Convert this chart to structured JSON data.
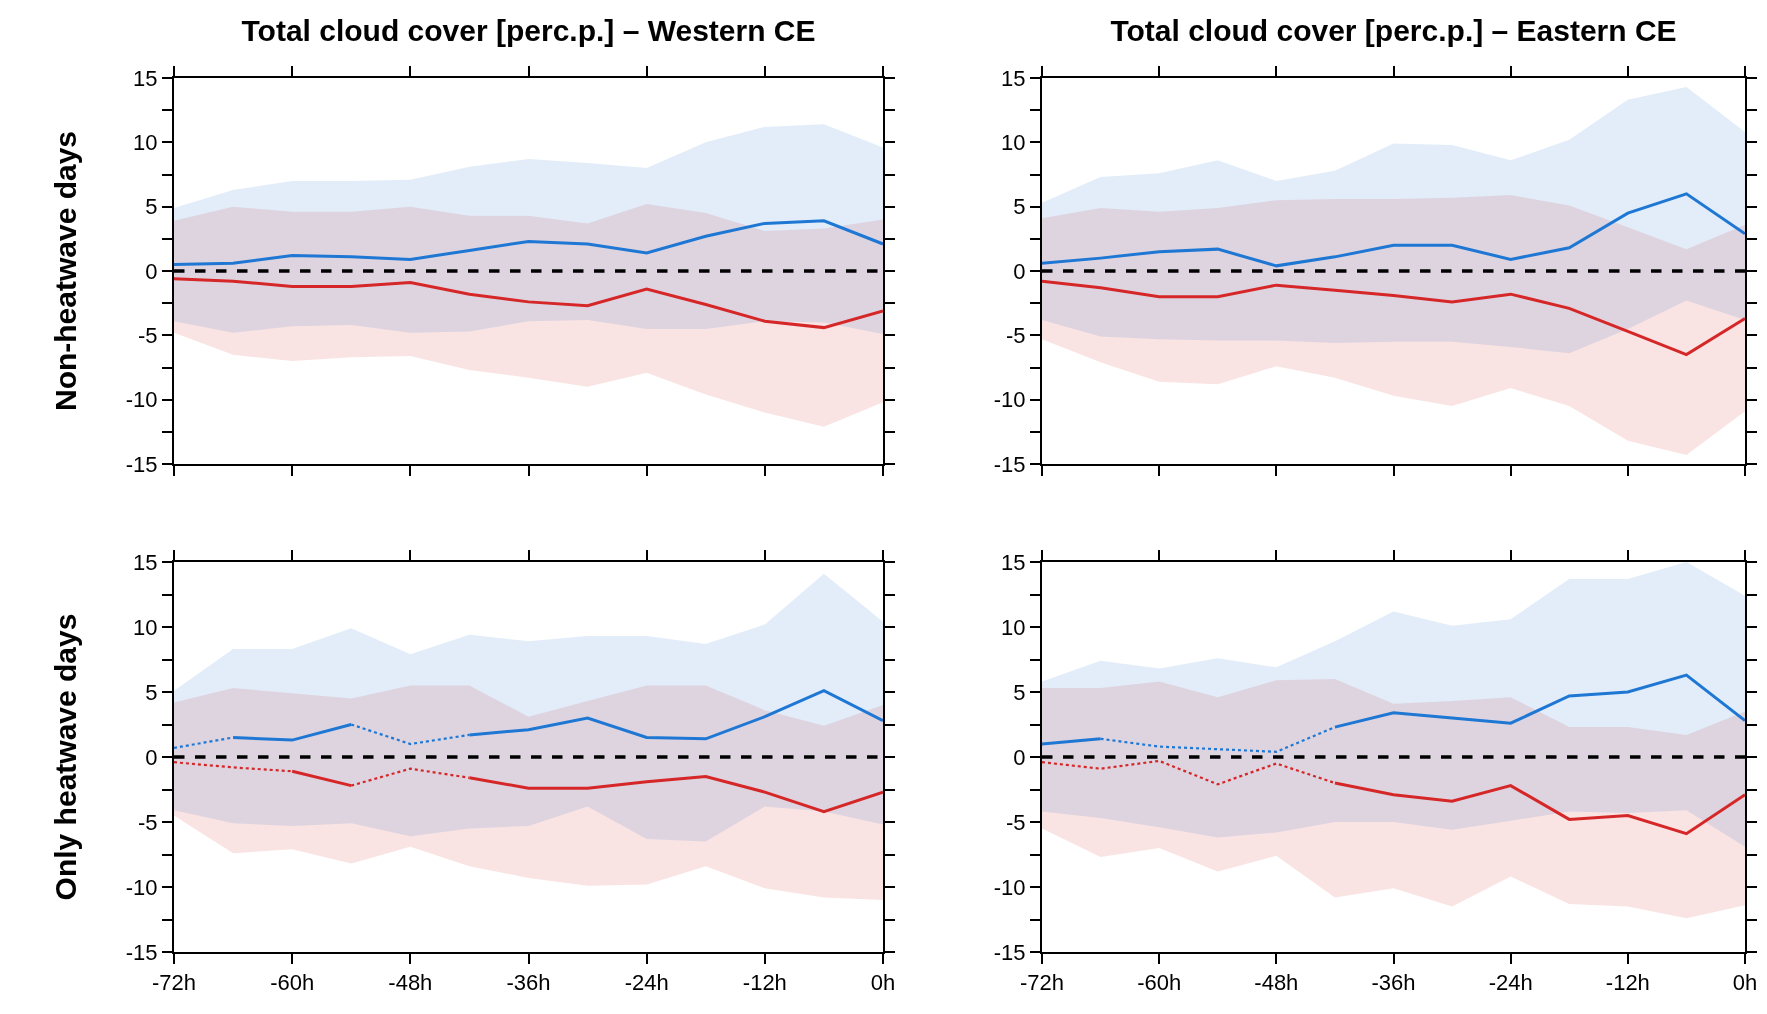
{
  "chart_data": [
    {
      "type": "line",
      "title": "Total cloud cover [perc.p.] – Western CE",
      "ylabel": "Non-heatwave days",
      "tick_labels": "y",
      "x": [
        -72,
        -66,
        -60,
        -54,
        -48,
        -42,
        -36,
        -30,
        -24,
        -18,
        -12,
        -6,
        0
      ],
      "xlim": [
        -72,
        0
      ],
      "xticks": [
        {
          "value": -72,
          "label": null
        },
        {
          "value": -60,
          "label": null
        },
        {
          "value": -48,
          "label": null
        },
        {
          "value": -36,
          "label": null
        },
        {
          "value": -24,
          "label": null
        },
        {
          "value": -12,
          "label": null
        },
        {
          "value": 0,
          "label": null
        }
      ],
      "ylim": [
        -15,
        15
      ],
      "yticks": [
        -15,
        {
          "value": -12.5,
          "label": null
        },
        -10,
        {
          "value": -7.5,
          "label": null
        },
        -5,
        {
          "value": -2.5,
          "label": null
        },
        0,
        {
          "value": 2.5,
          "label": null
        },
        5,
        {
          "value": 7.5,
          "label": null
        },
        10,
        {
          "value": 12.5,
          "label": null
        },
        15
      ],
      "grid": false,
      "marker": "none",
      "ref_lines": [
        {
          "axis": "y",
          "value": 0,
          "color": "#000000",
          "line_style": "dashed"
        }
      ],
      "series": [
        {
          "color": "#d62728",
          "line_style": "solid",
          "values": [
            -0.6,
            -0.8,
            -1.2,
            -1.2,
            -0.9,
            -1.8,
            -2.4,
            -2.7,
            -1.4,
            -2.6,
            -3.9,
            -4.4,
            -3.1
          ],
          "lower": [
            -4.8,
            -6.5,
            -7.0,
            -6.7,
            -6.6,
            -7.7,
            -8.3,
            -9.0,
            -7.9,
            -9.6,
            -11.0,
            -12.1,
            -10.2
          ],
          "upper": [
            3.9,
            5.0,
            4.6,
            4.6,
            5.0,
            4.3,
            4.3,
            3.7,
            5.2,
            4.5,
            3.1,
            3.3,
            4.0
          ]
        },
        {
          "color": "#1f77d4",
          "line_style": "solid",
          "values": [
            0.5,
            0.6,
            1.2,
            1.1,
            0.9,
            1.6,
            2.3,
            2.1,
            1.4,
            2.7,
            3.7,
            3.9,
            2.1
          ],
          "lower": [
            -3.9,
            -4.8,
            -4.3,
            -4.2,
            -4.8,
            -4.7,
            -3.9,
            -3.8,
            -4.5,
            -4.5,
            -3.9,
            -4.0,
            -4.9
          ],
          "upper": [
            4.9,
            6.3,
            7.0,
            7.0,
            7.1,
            8.1,
            8.7,
            8.4,
            8.0,
            10.0,
            11.2,
            11.4,
            9.6
          ]
        }
      ]
    },
    {
      "type": "line",
      "title": "Total cloud cover [perc.p.] – Eastern CE",
      "tick_labels": "y",
      "x": [
        -72,
        -66,
        -60,
        -54,
        -48,
        -42,
        -36,
        -30,
        -24,
        -18,
        -12,
        -6,
        0
      ],
      "xlim": [
        -72,
        0
      ],
      "xticks": [
        {
          "value": -72,
          "label": null
        },
        {
          "value": -60,
          "label": null
        },
        {
          "value": -48,
          "label": null
        },
        {
          "value": -36,
          "label": null
        },
        {
          "value": -24,
          "label": null
        },
        {
          "value": -12,
          "label": null
        },
        {
          "value": 0,
          "label": null
        }
      ],
      "ylim": [
        -15,
        15
      ],
      "yticks": [
        -15,
        {
          "value": -12.5,
          "label": null
        },
        -10,
        {
          "value": -7.5,
          "label": null
        },
        -5,
        {
          "value": -2.5,
          "label": null
        },
        0,
        {
          "value": 2.5,
          "label": null
        },
        5,
        {
          "value": 7.5,
          "label": null
        },
        10,
        {
          "value": 12.5,
          "label": null
        },
        15
      ],
      "grid": false,
      "marker": "none",
      "ref_lines": [
        {
          "axis": "y",
          "value": 0,
          "color": "#000000",
          "line_style": "dashed"
        }
      ],
      "series": [
        {
          "color": "#d62728",
          "line_style": "solid",
          "values": [
            -0.8,
            -1.3,
            -2.0,
            -2.0,
            -1.1,
            -1.5,
            -1.9,
            -2.4,
            -1.8,
            -2.9,
            -4.7,
            -6.5,
            -3.7
          ],
          "lower": [
            -5.3,
            -7.1,
            -8.6,
            -8.8,
            -7.4,
            -8.3,
            -9.7,
            -10.5,
            -9.1,
            -10.5,
            -13.2,
            -14.3,
            -10.9
          ],
          "upper": [
            4.1,
            4.9,
            4.6,
            4.9,
            5.5,
            5.6,
            5.6,
            5.7,
            5.9,
            5.1,
            3.4,
            1.7,
            3.6
          ]
        },
        {
          "color": "#1f77d4",
          "line_style": "solid",
          "values": [
            0.6,
            1.0,
            1.5,
            1.7,
            0.4,
            1.1,
            2.0,
            2.0,
            0.9,
            1.8,
            4.5,
            6.0,
            2.9
          ],
          "lower": [
            -3.8,
            -5.1,
            -5.3,
            -5.4,
            -5.4,
            -5.6,
            -5.5,
            -5.5,
            -5.9,
            -6.4,
            -4.5,
            -2.3,
            -3.8
          ],
          "upper": [
            5.3,
            7.3,
            7.6,
            8.6,
            7.0,
            7.8,
            9.9,
            9.8,
            8.6,
            10.2,
            13.3,
            14.3,
            10.8
          ]
        }
      ]
    },
    {
      "type": "line",
      "ylabel": "Only heatwave days",
      "x": [
        -72,
        -66,
        -60,
        -54,
        -48,
        -42,
        -36,
        -30,
        -24,
        -18,
        -12,
        -6,
        0
      ],
      "xlim": [
        -72,
        0
      ],
      "xticks": [
        {
          "value": -72,
          "label": "-72h"
        },
        {
          "value": -60,
          "label": "-60h"
        },
        {
          "value": -48,
          "label": "-48h"
        },
        {
          "value": -36,
          "label": "-36h"
        },
        {
          "value": -24,
          "label": "-24h"
        },
        {
          "value": -12,
          "label": "-12h"
        },
        {
          "value": 0,
          "label": "0h"
        }
      ],
      "ylim": [
        -15,
        15
      ],
      "yticks": [
        -15,
        {
          "value": -12.5,
          "label": null
        },
        -10,
        {
          "value": -7.5,
          "label": null
        },
        -5,
        {
          "value": -2.5,
          "label": null
        },
        0,
        {
          "value": 2.5,
          "label": null
        },
        5,
        {
          "value": 7.5,
          "label": null
        },
        10,
        {
          "value": 12.5,
          "label": null
        },
        15
      ],
      "grid": false,
      "marker": "none",
      "ref_lines": [
        {
          "axis": "y",
          "value": 0,
          "color": "#000000",
          "line_style": "dashed"
        }
      ],
      "series": [
        {
          "color": "#d62728",
          "line_style": "solid",
          "values": [
            null,
            null,
            null,
            null,
            null,
            -1.6,
            -2.4,
            -2.4,
            -1.9,
            -1.5,
            -2.7,
            -4.2,
            -2.7
          ],
          "lower": [
            -4.5,
            -7.4,
            -7.1,
            -8.2,
            -6.9,
            -8.4,
            -9.3,
            -9.9,
            -9.8,
            -8.4,
            -10.1,
            -10.8,
            -11.0
          ],
          "upper": [
            4.2,
            5.3,
            4.9,
            4.5,
            5.5,
            5.5,
            3.1,
            4.3,
            5.5,
            5.5,
            3.6,
            2.4,
            4.0
          ]
        },
        {
          "color": "#d62728",
          "line_style": "solid",
          "values": [
            null,
            null,
            -1.1,
            -2.2,
            null,
            null,
            null,
            null,
            null,
            null,
            null,
            null,
            null
          ]
        },
        {
          "color": "#d62728",
          "line_style": "dotted",
          "values": [
            -0.4,
            -0.8,
            -1.1,
            null,
            null,
            null,
            null,
            null,
            null,
            null,
            null,
            null,
            null
          ]
        },
        {
          "color": "#d62728",
          "line_style": "dotted",
          "values": [
            null,
            null,
            null,
            -2.2,
            -0.9,
            -1.6,
            null,
            null,
            null,
            null,
            null,
            null,
            null
          ]
        },
        {
          "color": "#1f77d4",
          "line_style": "solid",
          "values": [
            null,
            null,
            null,
            null,
            null,
            1.7,
            2.1,
            3.0,
            1.5,
            1.4,
            3.1,
            5.1,
            2.8
          ],
          "lower": [
            -4.1,
            -5.1,
            -5.3,
            -5.1,
            -6.1,
            -5.5,
            -5.3,
            -3.8,
            -6.3,
            -6.5,
            -3.8,
            -4.2,
            -5.2
          ],
          "upper": [
            5.1,
            8.3,
            8.3,
            9.9,
            7.9,
            9.4,
            8.9,
            9.3,
            9.3,
            8.7,
            10.2,
            14.1,
            10.4
          ]
        },
        {
          "color": "#1f77d4",
          "line_style": "solid",
          "values": [
            null,
            1.5,
            1.3,
            2.5,
            null,
            null,
            null,
            null,
            null,
            null,
            null,
            null,
            null
          ]
        },
        {
          "color": "#1f77d4",
          "line_style": "dotted",
          "values": [
            0.7,
            1.5,
            null,
            null,
            null,
            null,
            null,
            null,
            null,
            null,
            null,
            null,
            null
          ]
        },
        {
          "color": "#1f77d4",
          "line_style": "dotted",
          "values": [
            null,
            null,
            null,
            2.5,
            1.0,
            1.7,
            null,
            null,
            null,
            null,
            null,
            null,
            null
          ]
        }
      ]
    },
    {
      "type": "line",
      "x": [
        -72,
        -66,
        -60,
        -54,
        -48,
        -42,
        -36,
        -30,
        -24,
        -18,
        -12,
        -6,
        0
      ],
      "xlim": [
        -72,
        0
      ],
      "xticks": [
        {
          "value": -72,
          "label": "-72h"
        },
        {
          "value": -60,
          "label": "-60h"
        },
        {
          "value": -48,
          "label": "-48h"
        },
        {
          "value": -36,
          "label": "-36h"
        },
        {
          "value": -24,
          "label": "-24h"
        },
        {
          "value": -12,
          "label": "-12h"
        },
        {
          "value": 0,
          "label": "0h"
        }
      ],
      "ylim": [
        -15,
        15
      ],
      "yticks": [
        -15,
        {
          "value": -12.5,
          "label": null
        },
        -10,
        {
          "value": -7.5,
          "label": null
        },
        -5,
        {
          "value": -2.5,
          "label": null
        },
        0,
        {
          "value": 2.5,
          "label": null
        },
        5,
        {
          "value": 7.5,
          "label": null
        },
        10,
        {
          "value": 12.5,
          "label": null
        },
        15
      ],
      "grid": false,
      "marker": "none",
      "ref_lines": [
        {
          "axis": "y",
          "value": 0,
          "color": "#000000",
          "line_style": "dashed"
        }
      ],
      "series": [
        {
          "color": "#d62728",
          "line_style": "solid",
          "values": [
            null,
            null,
            null,
            null,
            null,
            -2.0,
            -2.9,
            -3.4,
            -2.2,
            -4.8,
            -4.5,
            -5.9,
            -2.9
          ],
          "lower": [
            -5.5,
            -7.7,
            -7.0,
            -8.8,
            -7.6,
            -10.8,
            -10.1,
            -11.5,
            -9.2,
            -11.3,
            -11.5,
            -12.4,
            -11.4
          ],
          "upper": [
            5.3,
            5.3,
            5.8,
            4.6,
            5.9,
            6.0,
            4.1,
            4.3,
            4.6,
            2.3,
            2.3,
            1.7,
            3.5
          ]
        },
        {
          "color": "#d62728",
          "line_style": "dotted",
          "values": [
            -0.4,
            -0.9,
            -0.3,
            -2.1,
            -0.5,
            -2.0,
            null,
            null,
            null,
            null,
            null,
            null,
            null
          ]
        },
        {
          "color": "#1f77d4",
          "line_style": "solid",
          "values": [
            1.0,
            1.4,
            null,
            null,
            null,
            2.3,
            3.4,
            3.0,
            2.6,
            4.7,
            5.0,
            6.3,
            2.8
          ],
          "lower": [
            -4.2,
            -4.7,
            -5.4,
            -6.2,
            -5.8,
            -5.0,
            -5.0,
            -5.6,
            -4.9,
            -4.2,
            -4.3,
            -4.1,
            -6.9
          ],
          "upper": [
            5.8,
            7.4,
            6.8,
            7.6,
            6.9,
            8.9,
            11.2,
            10.1,
            10.6,
            13.7,
            13.7,
            15,
            12.4
          ]
        },
        {
          "color": "#1f77d4",
          "line_style": "dotted",
          "values": [
            null,
            1.4,
            0.8,
            0.6,
            0.4,
            2.3,
            null,
            null,
            null,
            null,
            null,
            null,
            null
          ]
        }
      ]
    }
  ]
}
